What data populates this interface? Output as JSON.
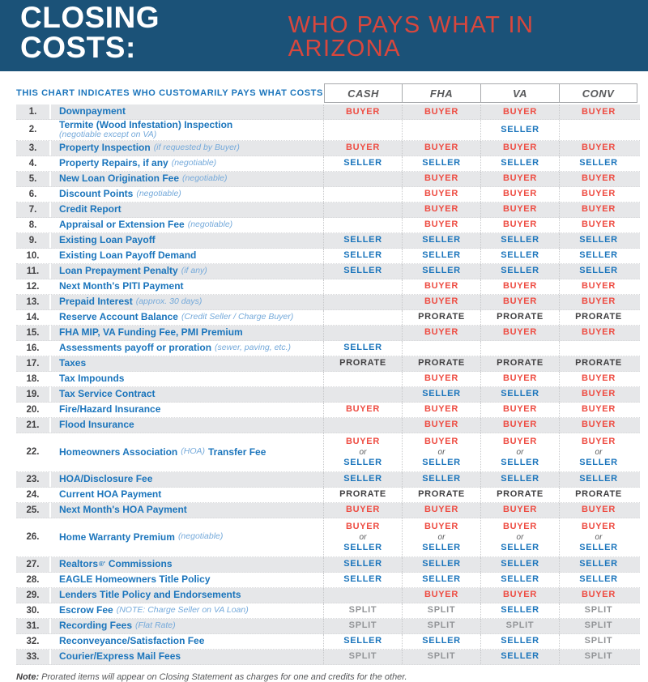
{
  "colors": {
    "banner_blue": "#1b5278",
    "accent_red": "#d9473d",
    "buyer_red": "#ee4c42",
    "seller_blue": "#1b75bc",
    "prorate_dark": "#414042",
    "split_gray": "#939598",
    "stripe_gray": "#e6e7e9"
  },
  "header": {
    "title_main": "CLOSING COSTS:",
    "title_accent": "WHO PAYS WHAT IN ARIZONA"
  },
  "chart_data": {
    "type": "table",
    "title": "CLOSING COSTS: WHO PAYS WHAT IN ARIZONA",
    "caption": "THIS CHART INDICATES WHO CUSTOMARILY PAYS WHAT COSTS",
    "columns": [
      "CASH",
      "FHA",
      "VA",
      "CONV"
    ],
    "rows": [
      {
        "num": "1.",
        "label": "Downpayment",
        "cells": [
          "BUYER",
          "BUYER",
          "BUYER",
          "BUYER"
        ]
      },
      {
        "num": "2.",
        "label": "Termite (Wood Infestation) Inspection",
        "note": "(negotiable except on VA)",
        "cells": [
          "",
          "",
          "SELLER",
          ""
        ]
      },
      {
        "num": "3.",
        "label": "Property Inspection",
        "note": "(if requested by Buyer)",
        "cells": [
          "BUYER",
          "BUYER",
          "BUYER",
          "BUYER"
        ]
      },
      {
        "num": "4.",
        "label": "Property Repairs, if any",
        "note": "(negotiable)",
        "cells": [
          "SELLER",
          "SELLER",
          "SELLER",
          "SELLER"
        ]
      },
      {
        "num": "5.",
        "label": "New Loan Origination Fee",
        "note": "(negotiable)",
        "cells": [
          "",
          "BUYER",
          "BUYER",
          "BUYER"
        ]
      },
      {
        "num": "6.",
        "label": "Discount Points",
        "note": "(negotiable)",
        "cells": [
          "",
          "BUYER",
          "BUYER",
          "BUYER"
        ]
      },
      {
        "num": "7.",
        "label": "Credit Report",
        "cells": [
          "",
          "BUYER",
          "BUYER",
          "BUYER"
        ]
      },
      {
        "num": "8.",
        "label": "Appraisal or Extension Fee",
        "note": "(negotiable)",
        "cells": [
          "",
          "BUYER",
          "BUYER",
          "BUYER"
        ]
      },
      {
        "num": "9.",
        "label": "Existing Loan Payoff",
        "cells": [
          "SELLER",
          "SELLER",
          "SELLER",
          "SELLER"
        ]
      },
      {
        "num": "10.",
        "label": "Existing Loan Payoff Demand",
        "cells": [
          "SELLER",
          "SELLER",
          "SELLER",
          "SELLER"
        ]
      },
      {
        "num": "11.",
        "label": "Loan Prepayment Penalty",
        "note": "(if any)",
        "cells": [
          "SELLER",
          "SELLER",
          "SELLER",
          "SELLER"
        ]
      },
      {
        "num": "12.",
        "label": "Next Month's PITI Payment",
        "cells": [
          "",
          "BUYER",
          "BUYER",
          "BUYER"
        ]
      },
      {
        "num": "13.",
        "label": "Prepaid Interest",
        "note": "(approx. 30 days)",
        "cells": [
          "",
          "BUYER",
          "BUYER",
          "BUYER"
        ]
      },
      {
        "num": "14.",
        "label": "Reserve Account Balance",
        "note": "(Credit Seller / Charge Buyer)",
        "cells": [
          "",
          "PRORATE",
          "PRORATE",
          "PRORATE"
        ]
      },
      {
        "num": "15.",
        "label": "FHA MIP, VA Funding Fee, PMI Premium",
        "cells": [
          "",
          "BUYER",
          "BUYER",
          "BUYER"
        ]
      },
      {
        "num": "16.",
        "label": "Assessments payoff or proration",
        "note": "(sewer, paving, etc.)",
        "cells": [
          "SELLER",
          "",
          "",
          ""
        ]
      },
      {
        "num": "17.",
        "label": "Taxes",
        "cells": [
          "PRORATE",
          "PRORATE",
          "PRORATE",
          "PRORATE"
        ]
      },
      {
        "num": "18.",
        "label": "Tax Impounds",
        "cells": [
          "",
          "BUYER",
          "BUYER",
          "BUYER"
        ]
      },
      {
        "num": "19.",
        "label": "Tax Service Contract",
        "cells": [
          "",
          "SELLER",
          "SELLER",
          "BUYER"
        ]
      },
      {
        "num": "20.",
        "label": "Fire/Hazard Insurance",
        "cells": [
          "BUYER",
          "BUYER",
          "BUYER",
          "BUYER"
        ]
      },
      {
        "num": "21.",
        "label": "Flood Insurance",
        "cells": [
          "",
          "BUYER",
          "BUYER",
          "BUYER"
        ]
      },
      {
        "num": "22.",
        "label": "Homeowners Association",
        "note": "(HOA)",
        "label2": "Transfer Fee",
        "tall": true,
        "cells": [
          "BUYER or SELLER",
          "BUYER or SELLER",
          "BUYER or SELLER",
          "BUYER or SELLER"
        ]
      },
      {
        "num": "23.",
        "label": "HOA/Disclosure Fee",
        "cells": [
          "SELLER",
          "SELLER",
          "SELLER",
          "SELLER"
        ]
      },
      {
        "num": "24.",
        "label": "Current HOA Payment",
        "cells": [
          "PRORATE",
          "PRORATE",
          "PRORATE",
          "PRORATE"
        ]
      },
      {
        "num": "25.",
        "label": "Next Month's HOA Payment",
        "cells": [
          "BUYER",
          "BUYER",
          "BUYER",
          "BUYER"
        ]
      },
      {
        "num": "26.",
        "label": "Home Warranty Premium",
        "note": "(negotiable)",
        "tall": true,
        "cells": [
          "BUYER or SELLER",
          "BUYER or SELLER",
          "BUYER or SELLER",
          "BUYER or SELLER"
        ]
      },
      {
        "num": "27.",
        "label": "Realtors",
        "sup": "®'",
        "label2": "Commissions",
        "cells": [
          "SELLER",
          "SELLER",
          "SELLER",
          "SELLER"
        ]
      },
      {
        "num": "28.",
        "label": "EAGLE Homeowners Title Policy",
        "cells": [
          "SELLER",
          "SELLER",
          "SELLER",
          "SELLER"
        ]
      },
      {
        "num": "29.",
        "label": "Lenders Title Policy and Endorsements",
        "cells": [
          "",
          "BUYER",
          "BUYER",
          "BUYER"
        ]
      },
      {
        "num": "30.",
        "label": "Escrow Fee",
        "note": "(NOTE: Charge Seller on VA Loan)",
        "cells": [
          "SPLIT",
          "SPLIT",
          "SELLER",
          "SPLIT"
        ]
      },
      {
        "num": "31.",
        "label": "Recording Fees",
        "note": "(Flat Rate)",
        "cells": [
          "SPLIT",
          "SPLIT",
          "SPLIT",
          "SPLIT"
        ]
      },
      {
        "num": "32.",
        "label": "Reconveyance/Satisfaction Fee",
        "cells": [
          "SELLER",
          "SELLER",
          "SELLER",
          "SPLIT"
        ]
      },
      {
        "num": "33.",
        "label": "Courier/Express Mail Fees",
        "cells": [
          "SPLIT",
          "SPLIT",
          "SELLER",
          "SPLIT"
        ]
      }
    ],
    "footnote_label": "Note:",
    "footnote": "Prorated items will appear on Closing Statement as charges for one and credits for the other."
  }
}
